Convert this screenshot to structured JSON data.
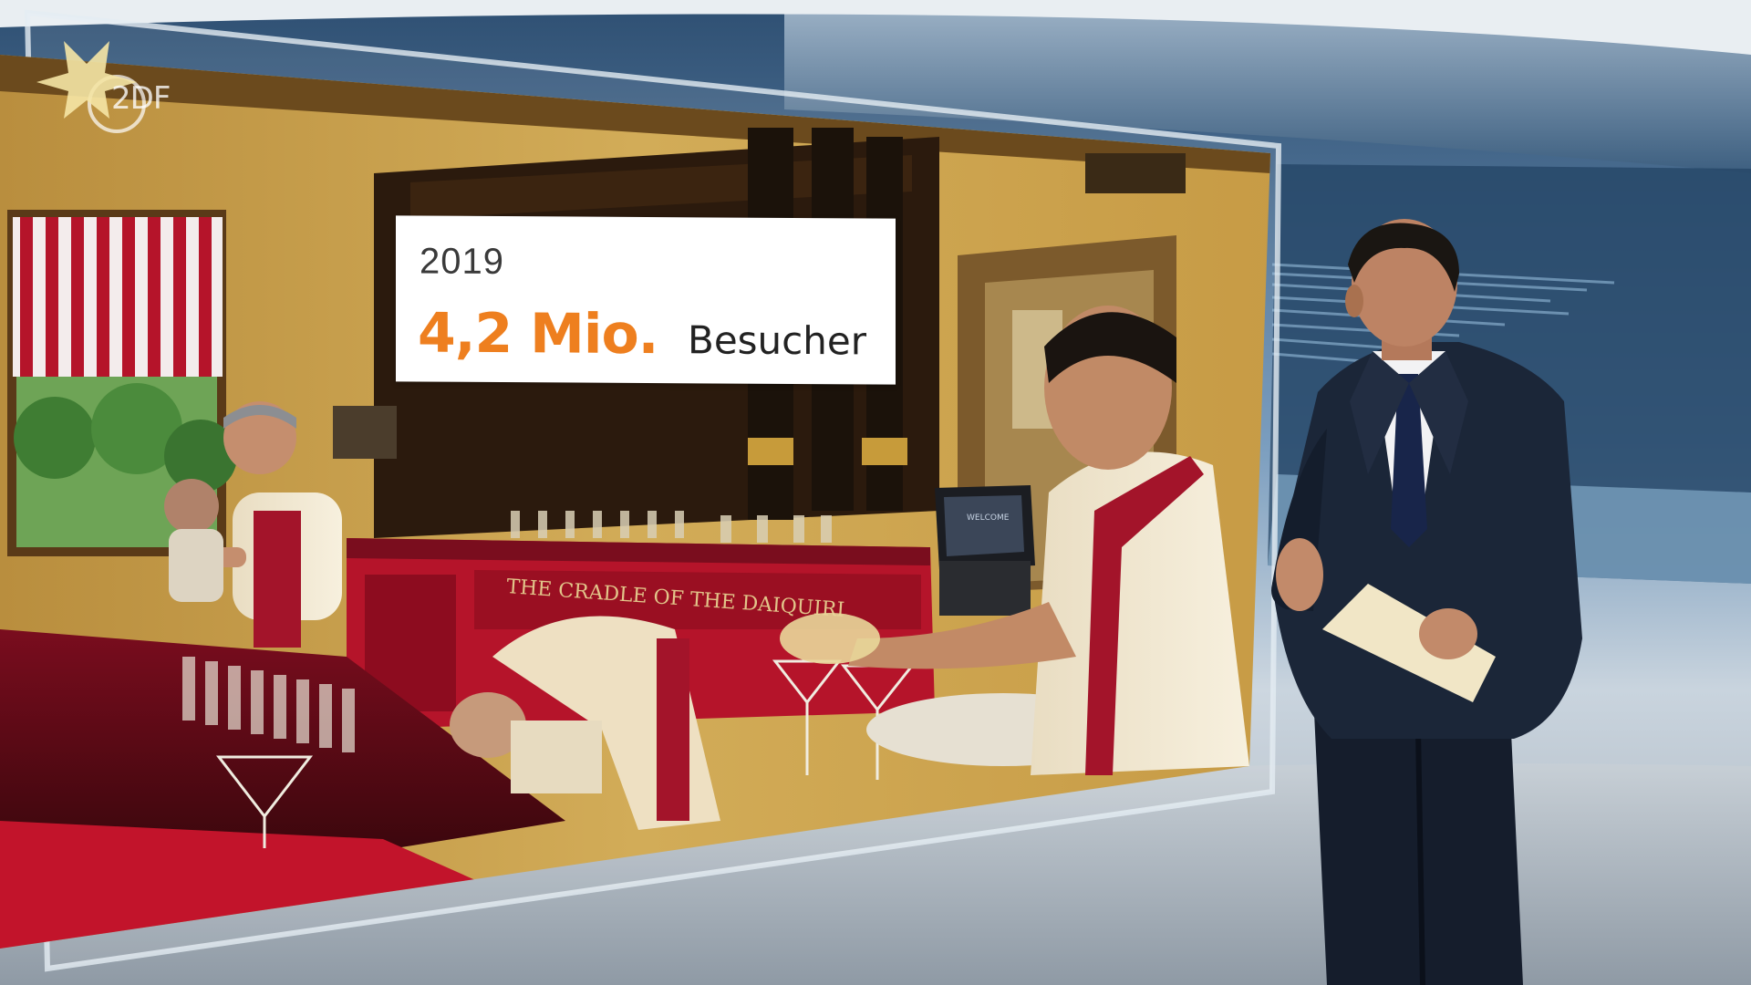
{
  "broadcast": {
    "channel_logo_text": "2DF"
  },
  "info_card": {
    "year": "2019",
    "value": "4,2 Mio.",
    "unit_label": "Besucher"
  },
  "bar_sign": "THE CRADLE OF THE DAIQUIRI",
  "monitor_label": "WELCOME",
  "colors": {
    "accent_orange": "#ee7f1f",
    "studio_blue": "#1e3a5c",
    "bar_red": "#b5142a",
    "wall_yellow": "#c9a24d"
  }
}
